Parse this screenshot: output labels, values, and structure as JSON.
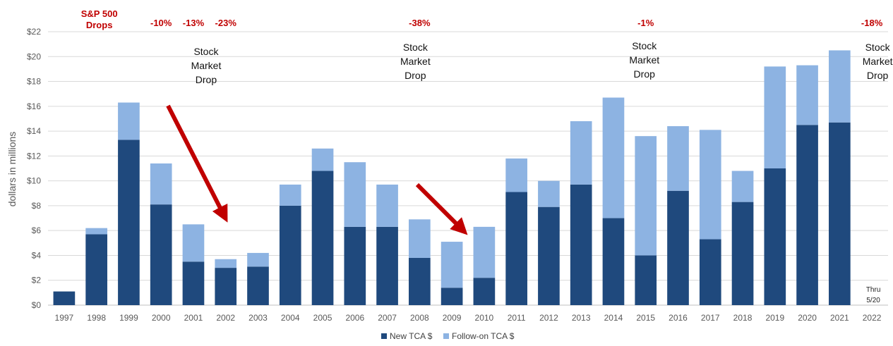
{
  "chart_data": {
    "type": "bar",
    "stacked": true,
    "categories": [
      "1997",
      "1998",
      "1999",
      "2000",
      "2001",
      "2002",
      "2003",
      "2004",
      "2005",
      "2006",
      "2007",
      "2008",
      "2009",
      "2010",
      "2011",
      "2012",
      "2013",
      "2014",
      "2015",
      "2016",
      "2017",
      "2018",
      "2019",
      "2020",
      "2021",
      "2022"
    ],
    "series": [
      {
        "name": "New TCA $",
        "color": "#1f497d",
        "values": [
          1.1,
          5.7,
          13.3,
          8.1,
          3.5,
          3.0,
          3.1,
          8.0,
          10.8,
          6.3,
          6.3,
          3.8,
          1.4,
          2.2,
          9.1,
          7.9,
          9.7,
          7.0,
          4.0,
          9.2,
          5.3,
          8.3,
          11.0,
          14.5,
          14.7,
          0
        ]
      },
      {
        "name": "Follow-on TCA $",
        "color": "#8db3e2",
        "values": [
          0,
          0.5,
          3.0,
          3.3,
          3.0,
          0.7,
          1.1,
          1.7,
          1.8,
          5.2,
          3.4,
          3.1,
          3.7,
          4.1,
          2.7,
          2.1,
          5.1,
          9.7,
          9.6,
          5.2,
          8.8,
          2.5,
          8.2,
          4.8,
          5.8,
          0
        ]
      }
    ],
    "ylabel": "dollars in millions",
    "ylim": [
      0,
      22
    ],
    "yticks": [
      "$0",
      "$2",
      "$4",
      "$6",
      "$8",
      "$10",
      "$12",
      "$14",
      "$16",
      "$18",
      "$20",
      "$22"
    ],
    "grid": true,
    "legend": "bottom",
    "annotations": {
      "sp500_header": [
        "S&P 500",
        "Drops"
      ],
      "drops": [
        {
          "category": "2000",
          "text": "-10%"
        },
        {
          "category": "2001",
          "text": "-13%"
        },
        {
          "category": "2002",
          "text": "-23%"
        },
        {
          "category": "2008",
          "text": "-38%"
        },
        {
          "category": "2015",
          "text": "-1%"
        },
        {
          "category": "2022",
          "text": "-18%"
        }
      ],
      "stock_market_drop": [
        "Stock",
        "Market",
        "Drop"
      ],
      "thru_note": [
        "Thru",
        "5/20"
      ]
    }
  }
}
